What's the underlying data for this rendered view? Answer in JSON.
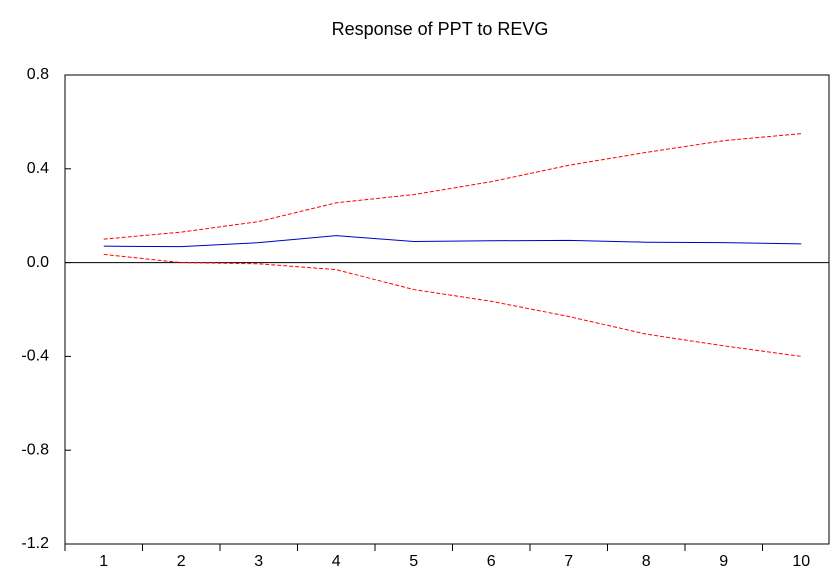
{
  "chart_data": {
    "type": "line",
    "title": "Response of PPT to REVG",
    "categories": [
      "1",
      "2",
      "3",
      "4",
      "5",
      "6",
      "7",
      "8",
      "9",
      "10"
    ],
    "series": [
      {
        "color": "#0000cc",
        "dashed": false,
        "values": [
          0.07,
          0.068,
          0.085,
          0.115,
          0.09,
          0.093,
          0.095,
          0.087,
          0.085,
          0.08
        ]
      },
      {
        "color": "#ff0000",
        "dashed": true,
        "values": [
          0.1,
          0.13,
          0.175,
          0.255,
          0.29,
          0.345,
          0.415,
          0.47,
          0.52,
          0.55
        ]
      },
      {
        "color": "#ff0000",
        "dashed": true,
        "values": [
          0.035,
          0.0,
          -0.005,
          -0.03,
          -0.115,
          -0.165,
          -0.23,
          -0.305,
          -0.355,
          -0.4
        ]
      }
    ],
    "ylim": [
      -1.2,
      0.8
    ],
    "yticks": [
      0.8,
      0.4,
      {
        "value": 0,
        "label": "0.0"
      },
      -0.4,
      -0.8,
      -1.2
    ],
    "grid": false
  }
}
